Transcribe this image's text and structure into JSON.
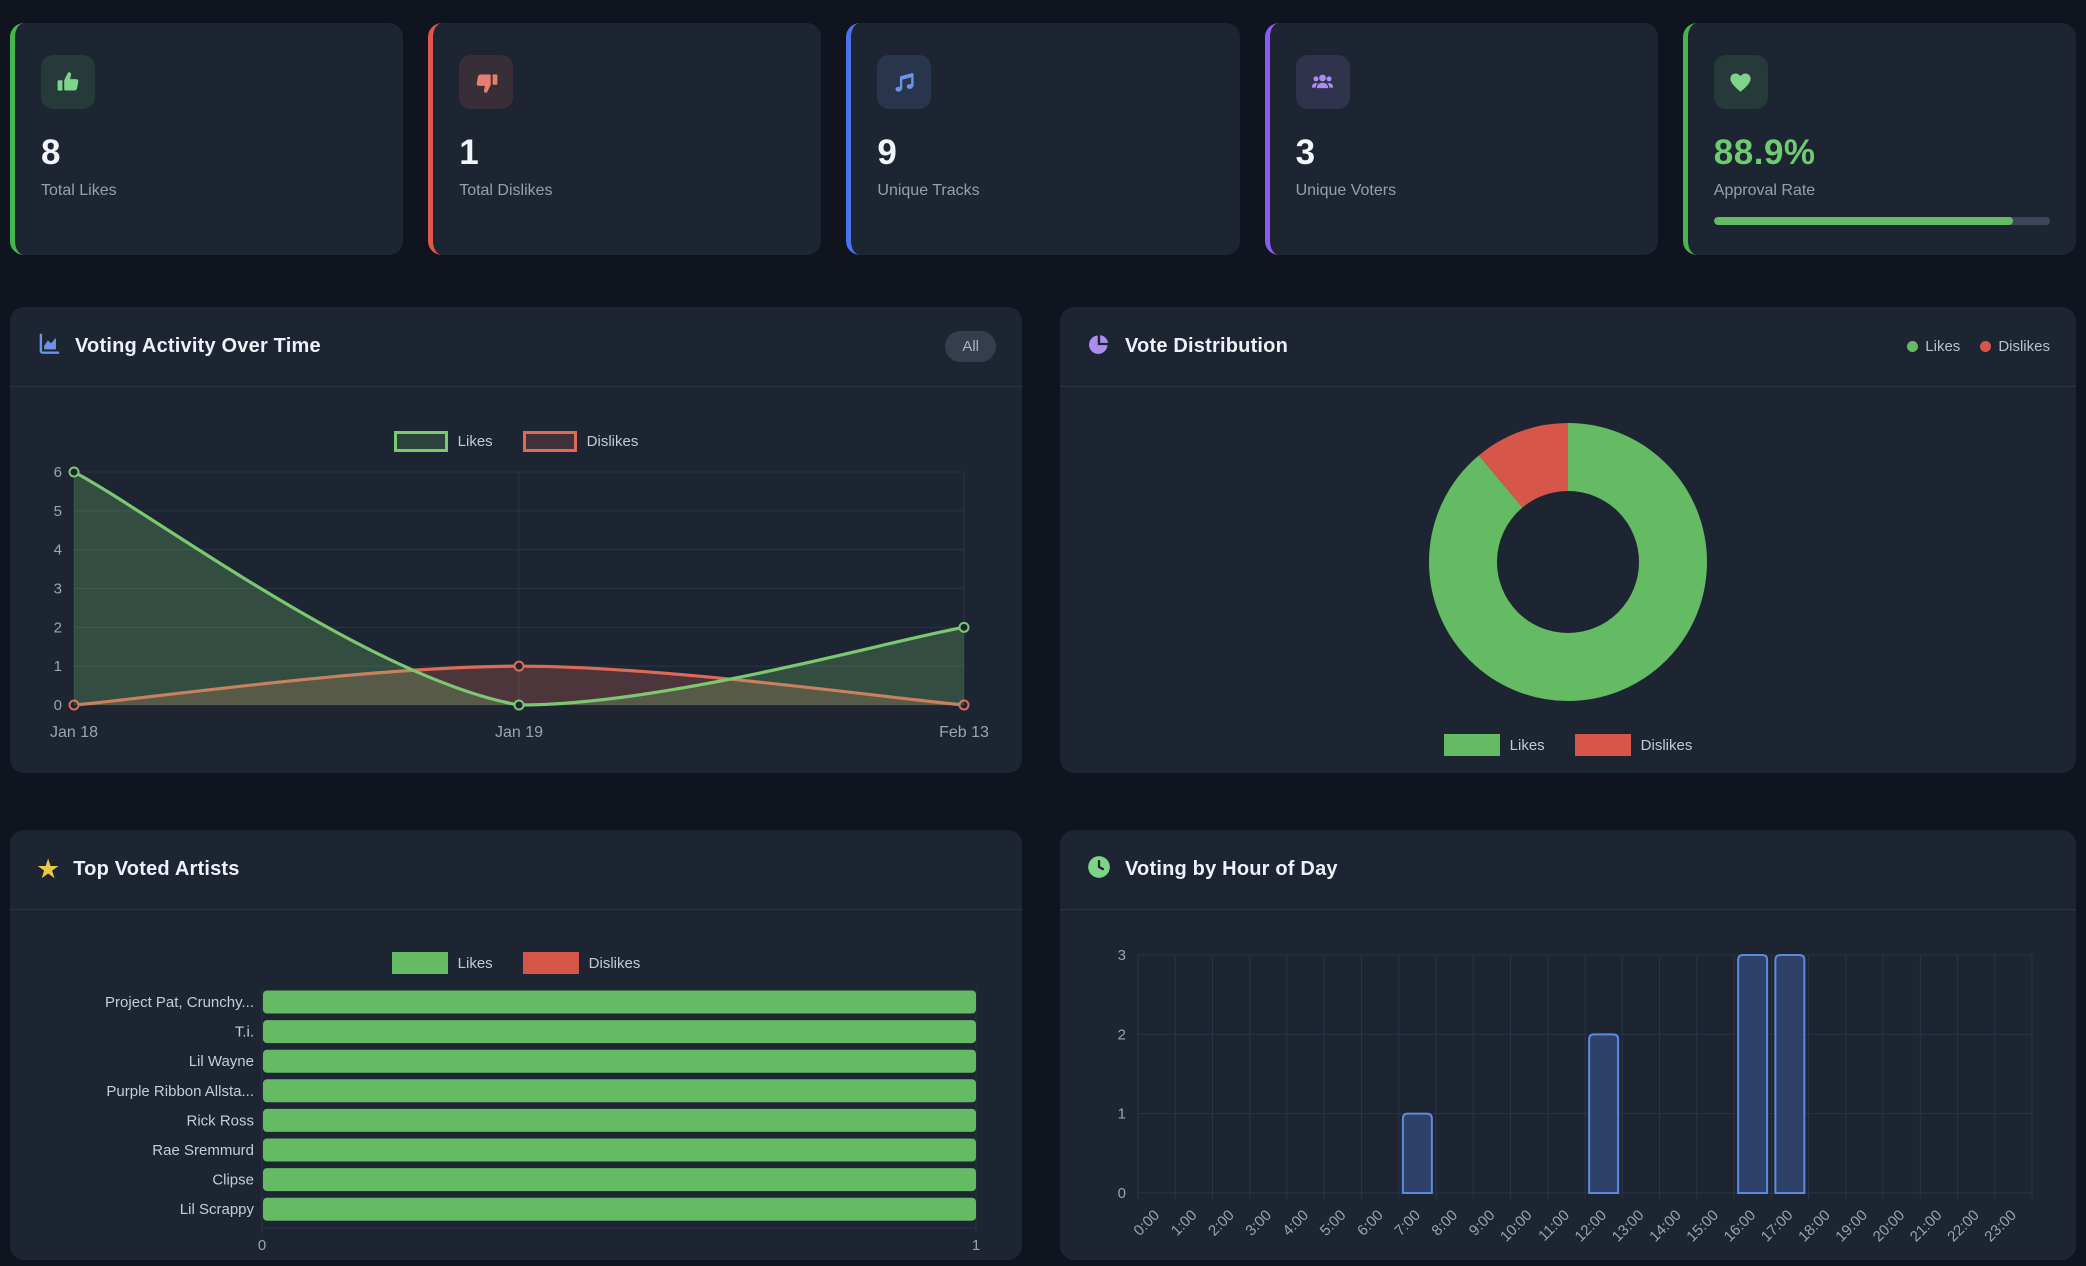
{
  "stats": [
    {
      "icon": "thumbs-up-icon",
      "value": "8",
      "label": "Total Likes",
      "accent": "#45b649"
    },
    {
      "icon": "thumbs-down-icon",
      "value": "1",
      "label": "Total Dislikes",
      "accent": "#e2574b"
    },
    {
      "icon": "music-note-icon",
      "value": "9",
      "label": "Unique Tracks",
      "accent": "#4a72ee"
    },
    {
      "icon": "users-icon",
      "value": "3",
      "label": "Unique Voters",
      "accent": "#8a5cf5"
    },
    {
      "icon": "heart-icon",
      "value": "88.9%",
      "label": "Approval Rate",
      "accent": "#45b649",
      "progress_pct": 88.9
    }
  ],
  "panels": {
    "activity": {
      "title": "Voting Activity Over Time",
      "filter": "All",
      "icon": "area-chart-icon"
    },
    "distribution": {
      "title": "Vote Distribution",
      "icon": "pie-chart-icon"
    },
    "artists": {
      "title": "Top Voted Artists",
      "icon": "star-icon"
    },
    "hours": {
      "title": "Voting by Hour of Day",
      "icon": "clock-icon"
    }
  },
  "colors": {
    "green": "#64bb64",
    "green_line": "#7cc871",
    "red": "#d6564a",
    "red_line": "#e06a58",
    "bar_fill": "#2e4168",
    "bar_border": "#5d8ade",
    "grid": "#2b3444",
    "tick_text": "#9aa4b2",
    "card_bg": "#1d2532"
  },
  "chart_data": [
    {
      "id": "activity",
      "type": "line",
      "title": "Voting Activity Over Time",
      "x": [
        "Jan 18",
        "Jan 19",
        "Feb 13"
      ],
      "series": [
        {
          "name": "Likes",
          "values": [
            6,
            0,
            2
          ],
          "color": "#7cc871"
        },
        {
          "name": "Dislikes",
          "values": [
            0,
            1,
            0
          ],
          "color": "#e06a58"
        }
      ],
      "ylim": [
        0,
        6
      ],
      "yticks": [
        0,
        1,
        2,
        3,
        4,
        5,
        6
      ],
      "grid": true,
      "area_fill": true,
      "legend_position": "top"
    },
    {
      "id": "distribution",
      "type": "pie",
      "title": "Vote Distribution",
      "labels": [
        "Likes",
        "Dislikes"
      ],
      "values": [
        8,
        1
      ],
      "colors": [
        "#64bb64",
        "#d6564a"
      ],
      "donut": true,
      "legend_position": "bottom"
    },
    {
      "id": "artists",
      "type": "bar",
      "orientation": "horizontal",
      "title": "Top Voted Artists",
      "categories": [
        "Project Pat, Crunchy...",
        "T.i.",
        "Lil Wayne",
        "Purple Ribbon Allsta...",
        "Rick Ross",
        "Rae Sremmurd",
        "Clipse",
        "Lil Scrappy"
      ],
      "series": [
        {
          "name": "Likes",
          "values": [
            1,
            1,
            1,
            1,
            1,
            1,
            1,
            1
          ],
          "color": "#64bb64"
        },
        {
          "name": "Dislikes",
          "values": [
            0,
            0,
            0,
            0,
            0,
            0,
            0,
            0
          ],
          "color": "#d6564a"
        }
      ],
      "xlim": [
        0,
        1
      ],
      "xticks": [
        0,
        1
      ],
      "legend_position": "top"
    },
    {
      "id": "hours",
      "type": "bar",
      "orientation": "vertical",
      "title": "Voting by Hour of Day",
      "categories": [
        "0:00",
        "1:00",
        "2:00",
        "3:00",
        "4:00",
        "5:00",
        "6:00",
        "7:00",
        "8:00",
        "9:00",
        "10:00",
        "11:00",
        "12:00",
        "13:00",
        "14:00",
        "15:00",
        "16:00",
        "17:00",
        "18:00",
        "19:00",
        "20:00",
        "21:00",
        "22:00",
        "23:00"
      ],
      "values": [
        0,
        0,
        0,
        0,
        0,
        0,
        0,
        1,
        0,
        0,
        0,
        0,
        2,
        0,
        0,
        0,
        3,
        3,
        0,
        0,
        0,
        0,
        0,
        0
      ],
      "ylim": [
        0,
        3
      ],
      "yticks": [
        0,
        1,
        2,
        3
      ],
      "grid": true
    }
  ]
}
